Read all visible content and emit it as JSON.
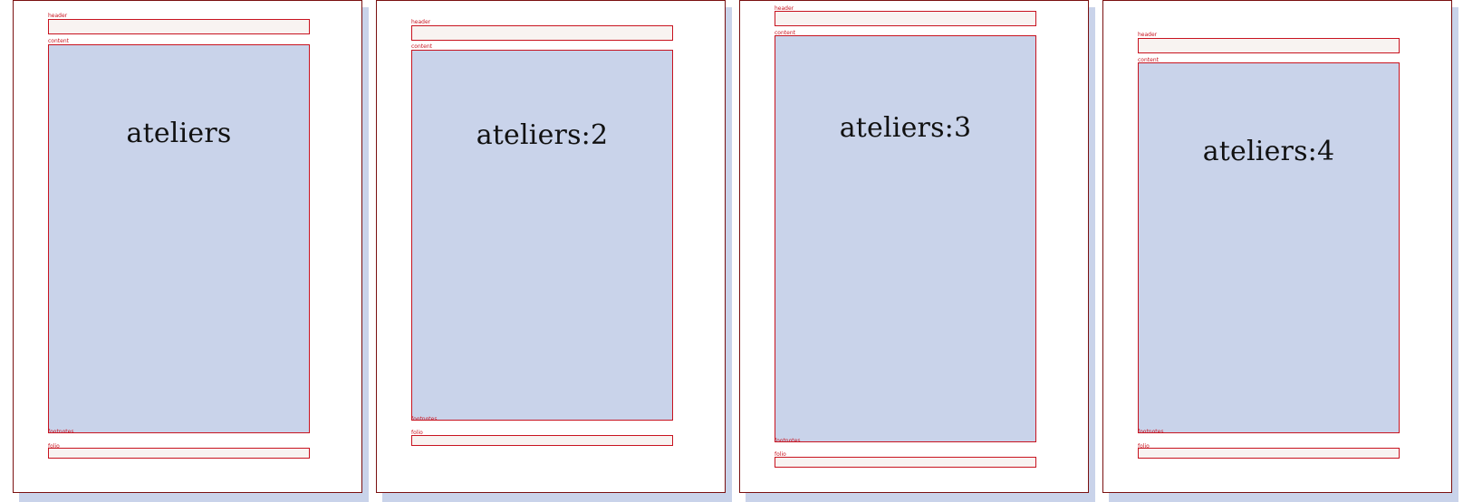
{
  "pages": [
    {
      "title": "ateliers",
      "header_label": "header",
      "content_label": "content",
      "footnotes_label": "footnotes",
      "folio_label": "folio"
    },
    {
      "title": "ateliers:2",
      "header_label": "header",
      "content_label": "content",
      "footnotes_label": "footnotes",
      "folio_label": "folio"
    },
    {
      "title": "ateliers:3",
      "header_label": "header",
      "content_label": "content",
      "footnotes_label": "footnotes",
      "folio_label": "folio"
    },
    {
      "title": "ateliers:4",
      "header_label": "header",
      "content_label": "content",
      "footnotes_label": "footnotes",
      "folio_label": "folio"
    }
  ],
  "colors": {
    "frame_border": "#c8131f",
    "page_border": "#7a1010",
    "content_fill": "#c9d3ea",
    "light_fill": "#f8f3f1"
  }
}
